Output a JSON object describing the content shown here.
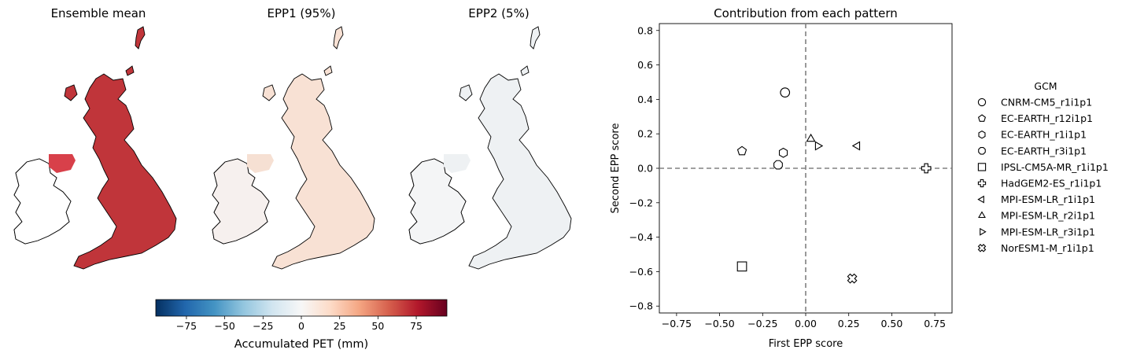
{
  "maps": {
    "titles": [
      "Ensemble mean",
      "EPP1 (95%)",
      "EPP2 (5%)"
    ],
    "fill_colors": [
      "#c0353a",
      "#f8e1d4",
      "#eef1f3"
    ],
    "ireland_colors": [
      "#ffffff",
      "#f6f0ee",
      "#f4f5f6"
    ],
    "ni_colors": [
      "#d8404a",
      "#f6e0d3",
      "#eef1f3"
    ]
  },
  "colorbar": {
    "label": "Accumulated PET (mm)",
    "ticks": [
      "−75",
      "−50",
      "−25",
      "0",
      "25",
      "50",
      "75"
    ],
    "tick_values": [
      -75,
      -50,
      -25,
      0,
      25,
      50,
      75
    ],
    "range": [
      -95,
      95
    ],
    "colormap": "RdBu_r",
    "colors": [
      "#053061",
      "#2166ac",
      "#4393c3",
      "#92c5de",
      "#d1e5f0",
      "#f7f7f7",
      "#fddbc7",
      "#f4a582",
      "#d6604d",
      "#b2182b",
      "#67001f"
    ]
  },
  "chart_data": {
    "type": "scatter",
    "title": "Contribution from each pattern",
    "xlabel": "First EPP score",
    "ylabel": "Second EPP score",
    "xlim": [
      -0.85,
      0.85
    ],
    "ylim": [
      -0.84,
      0.84
    ],
    "xticks": [
      -0.75,
      -0.5,
      -0.25,
      0.0,
      0.25,
      0.5,
      0.75
    ],
    "xtick_labels": [
      "−0.75",
      "−0.50",
      "−0.25",
      "0.00",
      "0.25",
      "0.50",
      "0.75"
    ],
    "yticks": [
      -0.8,
      -0.6,
      -0.4,
      -0.2,
      0.0,
      0.2,
      0.4,
      0.6,
      0.8
    ],
    "ytick_labels": [
      "−0.8",
      "−0.6",
      "−0.4",
      "−0.2",
      "0.0",
      "0.2",
      "0.4",
      "0.6",
      "0.8"
    ],
    "reference_lines": {
      "x": 0,
      "y": 0,
      "style": "dashed",
      "color": "#808080"
    },
    "legend": {
      "title": "GCM",
      "placement": "outside-right"
    },
    "series": [
      {
        "name": "CNRM-CM5_r1i1p1",
        "marker": "circle",
        "x": -0.12,
        "y": 0.44
      },
      {
        "name": "EC-EARTH_r12i1p1",
        "marker": "pentagon",
        "x": -0.37,
        "y": 0.1
      },
      {
        "name": "EC-EARTH_r1i1p1",
        "marker": "hexagon",
        "x": -0.13,
        "y": 0.09
      },
      {
        "name": "EC-EARTH_r3i1p1",
        "marker": "octagon",
        "x": -0.16,
        "y": 0.02
      },
      {
        "name": "IPSL-CM5A-MR_r1i1p1",
        "marker": "square",
        "x": -0.37,
        "y": -0.57
      },
      {
        "name": "HadGEM2-ES_r1i1p1",
        "marker": "plus",
        "x": 0.7,
        "y": 0.0
      },
      {
        "name": "MPI-ESM-LR_r1i1p1",
        "marker": "triangle-left",
        "x": 0.3,
        "y": 0.13
      },
      {
        "name": "MPI-ESM-LR_r2i1p1",
        "marker": "triangle-up",
        "x": 0.03,
        "y": 0.17
      },
      {
        "name": "MPI-ESM-LR_r3i1p1",
        "marker": "triangle-right",
        "x": 0.07,
        "y": 0.13
      },
      {
        "name": "NorESM1-M_r1i1p1",
        "marker": "x",
        "x": 0.27,
        "y": -0.64
      }
    ]
  }
}
